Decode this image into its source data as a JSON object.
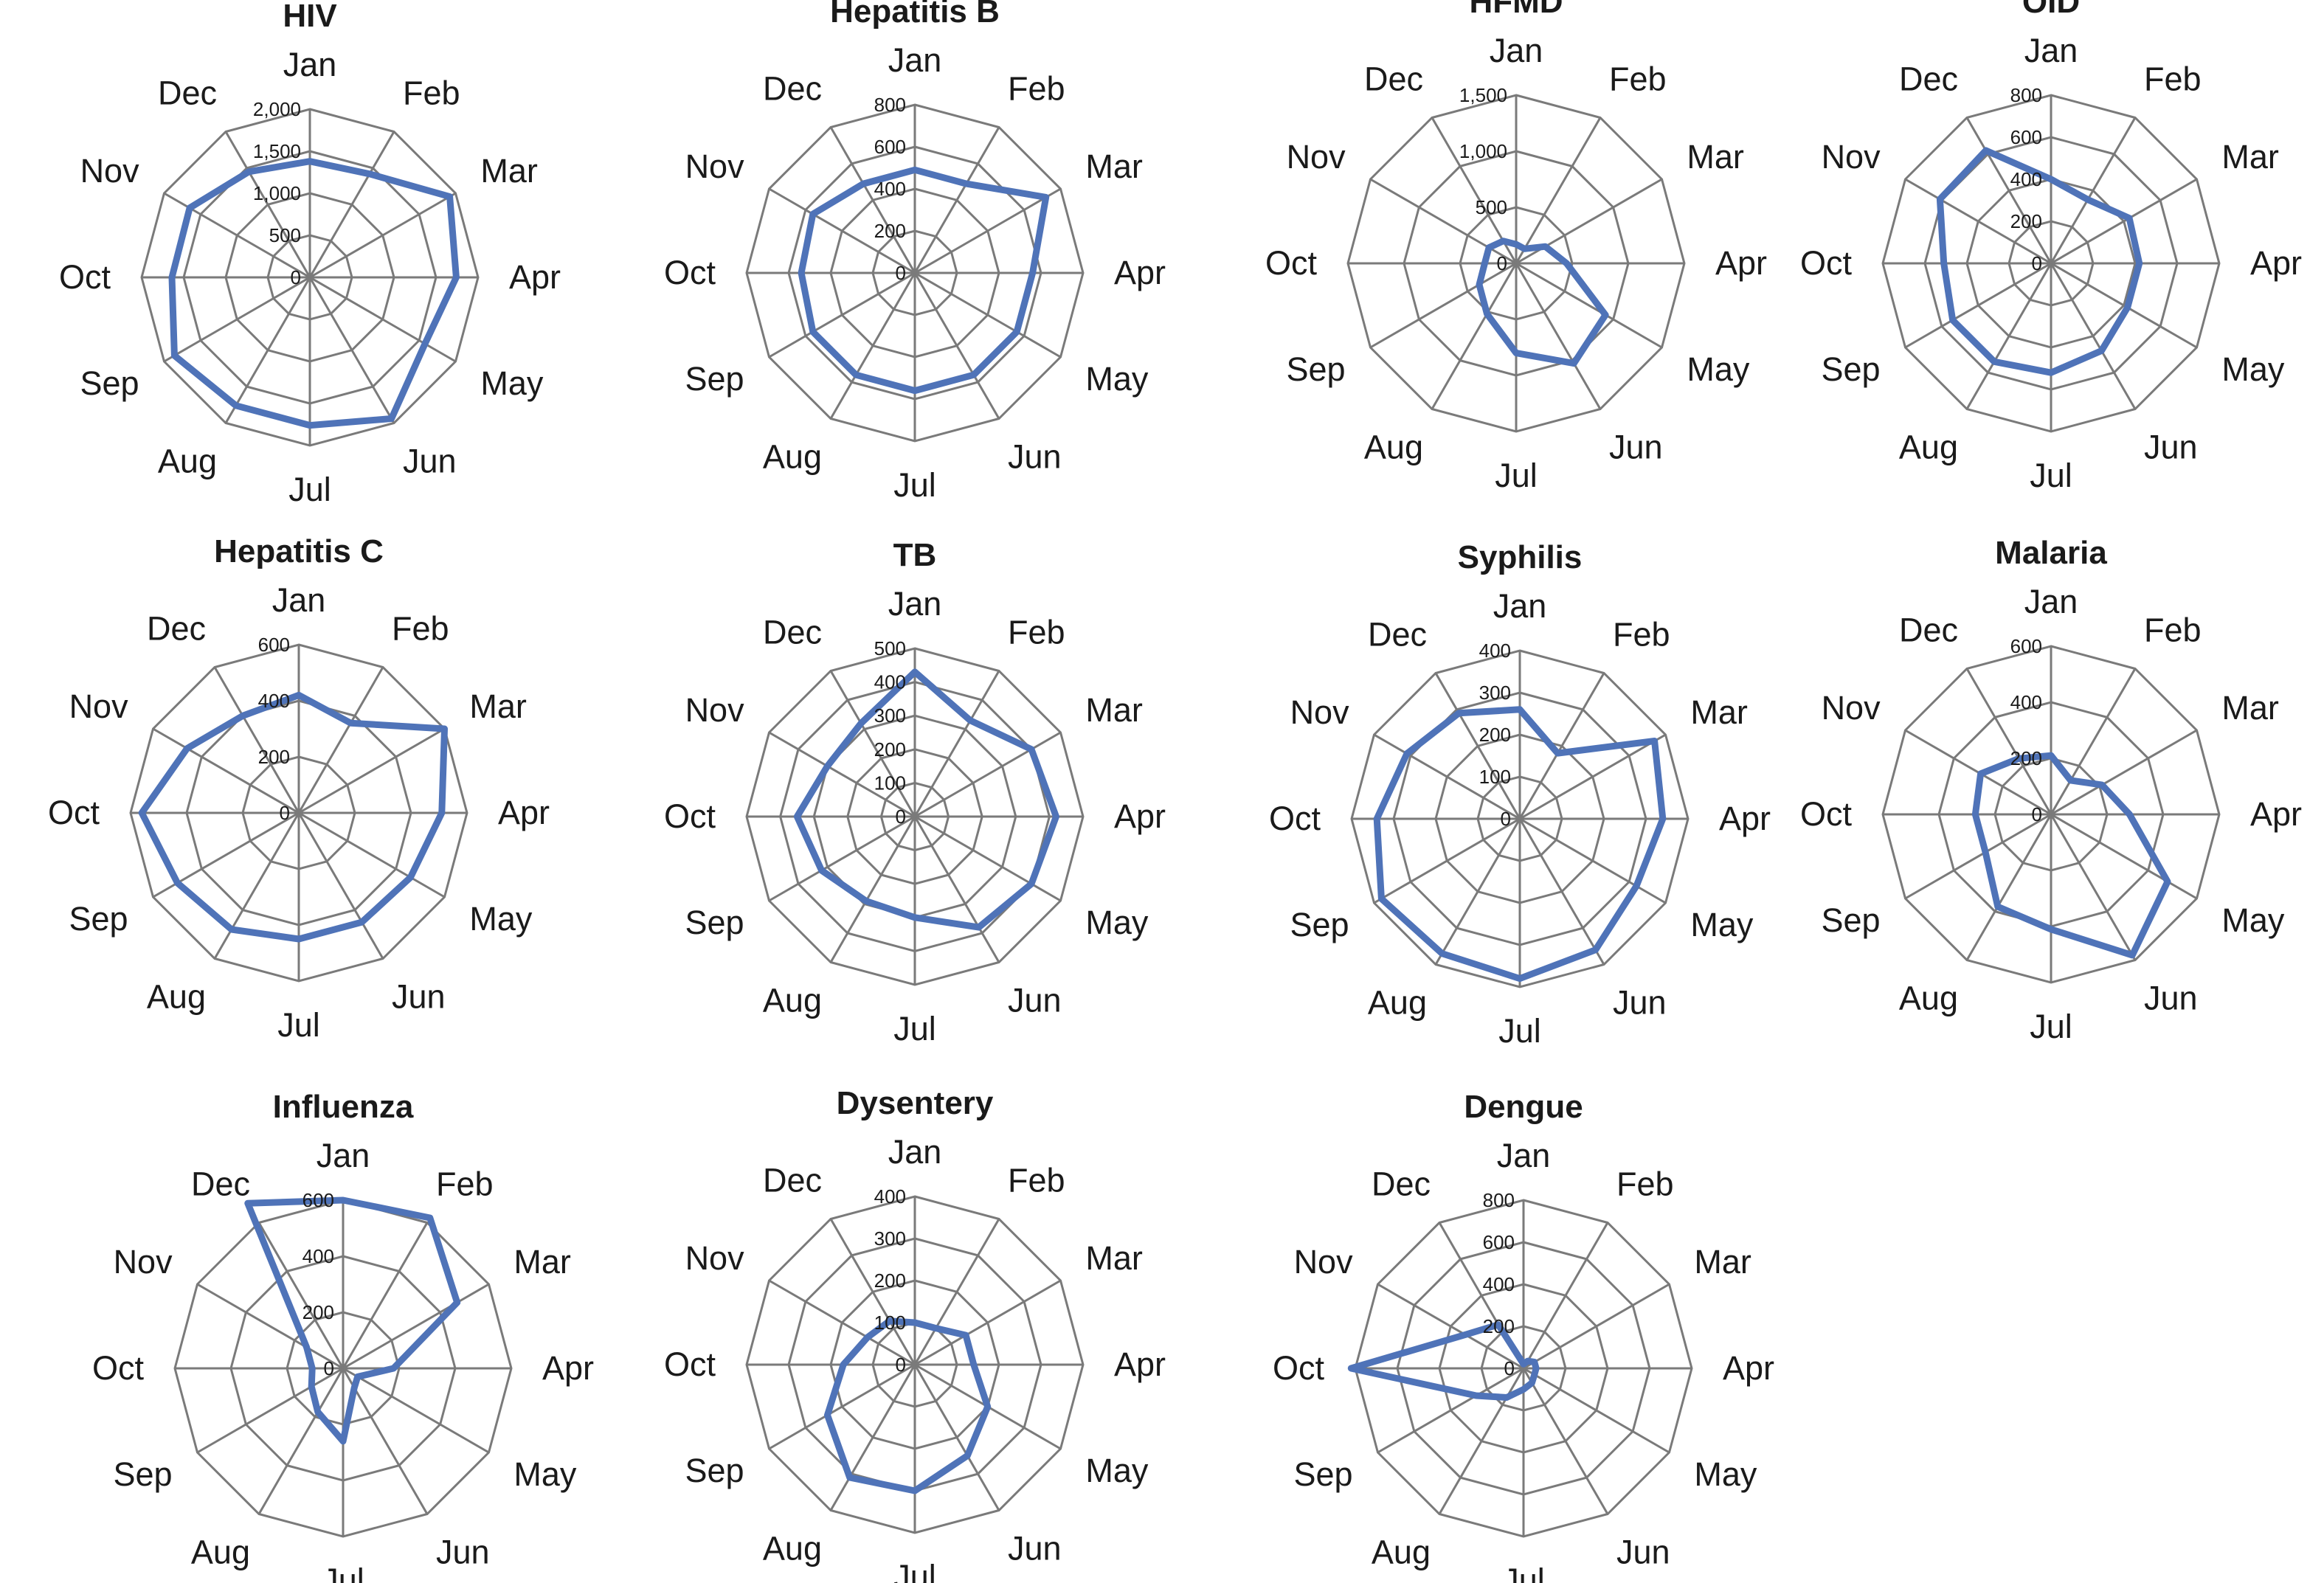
{
  "chart_data": [
    {
      "type": "radar",
      "title": "HIV",
      "categories": [
        "Jan",
        "Feb",
        "Mar",
        "Apr",
        "May",
        "Jun",
        "Jul",
        "Aug",
        "Sep",
        "Oct",
        "Nov",
        "Dec"
      ],
      "tick_labels": [
        "0",
        "500",
        "1,000",
        "1,500",
        "2,000"
      ],
      "ylim": [
        0,
        2000
      ],
      "series": [
        {
          "values": [
            1380,
            1420,
            1920,
            1740,
            1580,
            1940,
            1760,
            1760,
            1860,
            1640,
            1650,
            1450
          ]
        }
      ]
    },
    {
      "type": "radar",
      "title": "Hepatitis B",
      "categories": [
        "Jan",
        "Feb",
        "Mar",
        "Apr",
        "May",
        "Jun",
        "Jul",
        "Aug",
        "Sep",
        "Oct",
        "Nov",
        "Dec"
      ],
      "tick_labels": [
        "0",
        "200",
        "400",
        "600",
        "800"
      ],
      "ylim": [
        0,
        800
      ],
      "series": [
        {
          "values": [
            490,
            490,
            720,
            560,
            560,
            560,
            560,
            560,
            560,
            540,
            560,
            490
          ]
        }
      ]
    },
    {
      "type": "radar",
      "title": "HFMD",
      "categories": [
        "Jan",
        "Feb",
        "Mar",
        "Apr",
        "May",
        "Jun",
        "Jul",
        "Aug",
        "Sep",
        "Oct",
        "Nov",
        "Dec"
      ],
      "tick_labels": [
        "0",
        "500",
        "1,000",
        "1,500"
      ],
      "ylim": [
        0,
        1500
      ],
      "series": [
        {
          "values": [
            170,
            150,
            300,
            450,
            920,
            1030,
            800,
            520,
            380,
            280,
            280,
            230
          ]
        }
      ]
    },
    {
      "type": "radar",
      "title": "OID",
      "categories": [
        "Jan",
        "Feb",
        "Mar",
        "Apr",
        "May",
        "Jun",
        "Jul",
        "Aug",
        "Sep",
        "Oct",
        "Nov",
        "Dec"
      ],
      "tick_labels": [
        "0",
        "200",
        "400",
        "600",
        "800"
      ],
      "ylim": [
        0,
        800
      ],
      "series": [
        {
          "values": [
            400,
            350,
            430,
            420,
            420,
            480,
            520,
            540,
            540,
            510,
            610,
            620
          ]
        }
      ]
    },
    {
      "type": "radar",
      "title": "Hepatitis C",
      "categories": [
        "Jan",
        "Feb",
        "Mar",
        "Apr",
        "May",
        "Jun",
        "Jul",
        "Aug",
        "Sep",
        "Oct",
        "Nov",
        "Dec"
      ],
      "tick_labels": [
        "0",
        "200",
        "400",
        "600"
      ],
      "ylim": [
        0,
        600
      ],
      "series": [
        {
          "values": [
            420,
            370,
            600,
            510,
            460,
            450,
            450,
            480,
            500,
            560,
            460,
            400
          ]
        }
      ]
    },
    {
      "type": "radar",
      "title": "TB",
      "categories": [
        "Jan",
        "Feb",
        "Mar",
        "Apr",
        "May",
        "Jun",
        "Jul",
        "Aug",
        "Sep",
        "Oct",
        "Nov",
        "Dec"
      ],
      "tick_labels": [
        "0",
        "100",
        "200",
        "300",
        "400",
        "500"
      ],
      "ylim": [
        0,
        500
      ],
      "series": [
        {
          "values": [
            430,
            330,
            400,
            420,
            400,
            380,
            300,
            290,
            320,
            350,
            300,
            320
          ]
        }
      ]
    },
    {
      "type": "radar",
      "title": "Syphilis",
      "categories": [
        "Jan",
        "Feb",
        "Mar",
        "Apr",
        "May",
        "Jun",
        "Jul",
        "Aug",
        "Sep",
        "Oct",
        "Nov",
        "Dec"
      ],
      "tick_labels": [
        "0",
        "100",
        "200",
        "300",
        "400"
      ],
      "ylim": [
        0,
        400
      ],
      "series": [
        {
          "values": [
            260,
            180,
            370,
            340,
            320,
            360,
            380,
            370,
            380,
            340,
            310,
            290
          ]
        }
      ]
    },
    {
      "type": "radar",
      "title": "Malaria",
      "categories": [
        "Jan",
        "Feb",
        "Mar",
        "Apr",
        "May",
        "Jun",
        "Jul",
        "Aug",
        "Sep",
        "Oct",
        "Nov",
        "Dec"
      ],
      "tick_labels": [
        "0",
        "200",
        "400",
        "600"
      ],
      "ylim": [
        0,
        600
      ],
      "series": [
        {
          "values": [
            210,
            140,
            210,
            280,
            480,
            580,
            410,
            380,
            270,
            270,
            290,
            230
          ]
        }
      ]
    },
    {
      "type": "radar",
      "title": "Influenza",
      "categories": [
        "Jan",
        "Feb",
        "Mar",
        "Apr",
        "May",
        "Jun",
        "Jul",
        "Aug",
        "Sep",
        "Oct",
        "Nov",
        "Dec"
      ],
      "tick_labels": [
        "0",
        "200",
        "400",
        "600"
      ],
      "ylim": [
        0,
        600
      ],
      "series": [
        {
          "values": [
            600,
            620,
            470,
            180,
            60,
            80,
            260,
            180,
            130,
            110,
            150,
            680
          ]
        }
      ]
    },
    {
      "type": "radar",
      "title": "Dysentery",
      "categories": [
        "Jan",
        "Feb",
        "Mar",
        "Apr",
        "May",
        "Jun",
        "Jul",
        "Aug",
        "Sep",
        "Oct",
        "Nov",
        "Dec"
      ],
      "tick_labels": [
        "0",
        "100",
        "200",
        "300",
        "400"
      ],
      "ylim": [
        0,
        400
      ],
      "series": [
        {
          "values": [
            100,
            100,
            140,
            140,
            200,
            250,
            300,
            310,
            240,
            170,
            130,
            120
          ]
        }
      ]
    },
    {
      "type": "radar",
      "title": "Dengue",
      "categories": [
        "Jan",
        "Feb",
        "Mar",
        "Apr",
        "May",
        "Jun",
        "Jul",
        "Aug",
        "Sep",
        "Oct",
        "Nov",
        "Dec"
      ],
      "tick_labels": [
        "0",
        "200",
        "400",
        "600",
        "800"
      ],
      "ylim": [
        0,
        800
      ],
      "series": [
        {
          "values": [
            20,
            40,
            60,
            60,
            60,
            80,
            100,
            160,
            260,
            820,
            320,
            240
          ]
        }
      ]
    }
  ],
  "style": {
    "series_color": "#4f73b8",
    "grid_color": "#7a7a7a",
    "text_color": "#1a1a1a",
    "background": "#ffffff",
    "grid": true,
    "legend": "none"
  }
}
